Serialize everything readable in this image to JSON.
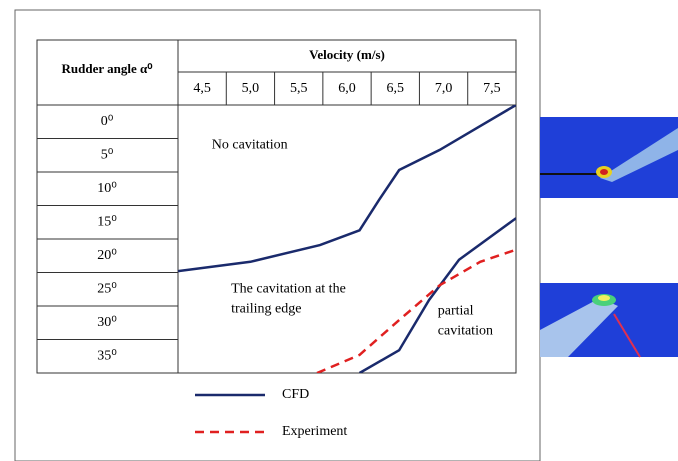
{
  "chart_data": {
    "type": "line",
    "row_header": "Rudder angle α⁰",
    "column_header": "Velocity (m/s)",
    "column_labels": [
      "4,5",
      "5,0",
      "5,5",
      "6,0",
      "6,5",
      "7,0",
      "7,5"
    ],
    "row_labels": [
      "0⁰",
      "5⁰",
      "10⁰",
      "15⁰",
      "20⁰",
      "25⁰",
      "30⁰",
      "35⁰"
    ],
    "xlim": [
      4.25,
      7.75
    ],
    "ylim": [
      -2.5,
      37.5
    ],
    "annotations": [
      {
        "lines": [
          "No cavitation"
        ],
        "x": 4.6,
        "y": 3.5
      },
      {
        "lines": [
          "The cavitation at the",
          "trailing edge"
        ],
        "x": 4.8,
        "y": 25
      },
      {
        "lines": [
          "partial",
          "cavitation"
        ],
        "x": 6.94,
        "y": 28.3
      }
    ],
    "series": [
      {
        "name": "CFD",
        "color": "#1a2a6c",
        "dash": false,
        "x": [
          4.25,
          5.0,
          5.72,
          6.13,
          6.33,
          6.54,
          6.96,
          7.75
        ],
        "values": [
          22.3,
          20.9,
          18.4,
          16.2,
          11.7,
          7.2,
          4.2,
          -2.5
        ]
      },
      {
        "color": "#1a2a6c",
        "dash": false,
        "x": [
          6.13,
          6.54,
          6.85,
          7.16,
          7.75
        ],
        "values": [
          37.5,
          34.1,
          26.6,
          20.6,
          14.4
        ]
      },
      {
        "name": "Experiment",
        "color": "#e02020",
        "dash": true,
        "x": [
          5.69,
          6.13,
          6.54,
          6.96,
          7.38,
          7.75
        ],
        "values": [
          37.5,
          34.8,
          29.6,
          24.4,
          20.9,
          19.1
        ]
      }
    ]
  }
}
